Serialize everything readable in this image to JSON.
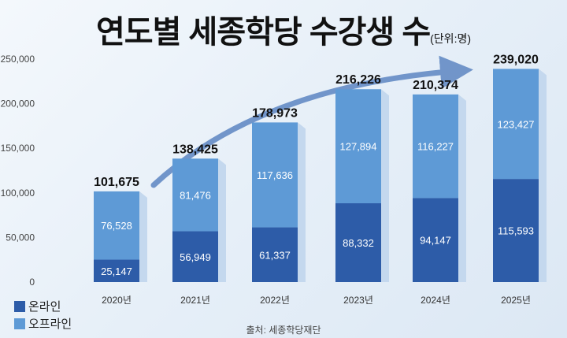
{
  "title": "연도별 세종학당 수강생 수",
  "unit": "(단위:명)",
  "source": "출처: 세종학당재단",
  "colors": {
    "online": "#2d5ca8",
    "offline": "#5e9ad6",
    "arrow": "#5d86c2"
  },
  "chart_data": {
    "type": "bar",
    "stacked": true,
    "categories": [
      "2020년",
      "2021년",
      "2022년",
      "2023년",
      "2024년",
      "2025년"
    ],
    "series": [
      {
        "name": "온라인",
        "values": [
          25147,
          56949,
          61337,
          88332,
          94147,
          115593
        ]
      },
      {
        "name": "오프라인",
        "values": [
          76528,
          81476,
          117636,
          127894,
          116227,
          123427
        ]
      }
    ],
    "totals": [
      101675,
      138425,
      178973,
      216226,
      210374,
      239020
    ],
    "ylim": [
      0,
      250000
    ],
    "yticks": [
      "0",
      "50,000",
      "100,000",
      "150,000",
      "200,000",
      "250,000"
    ],
    "legend_position": "bottom-left",
    "grid": false,
    "annotation": "upward trend arrow"
  }
}
